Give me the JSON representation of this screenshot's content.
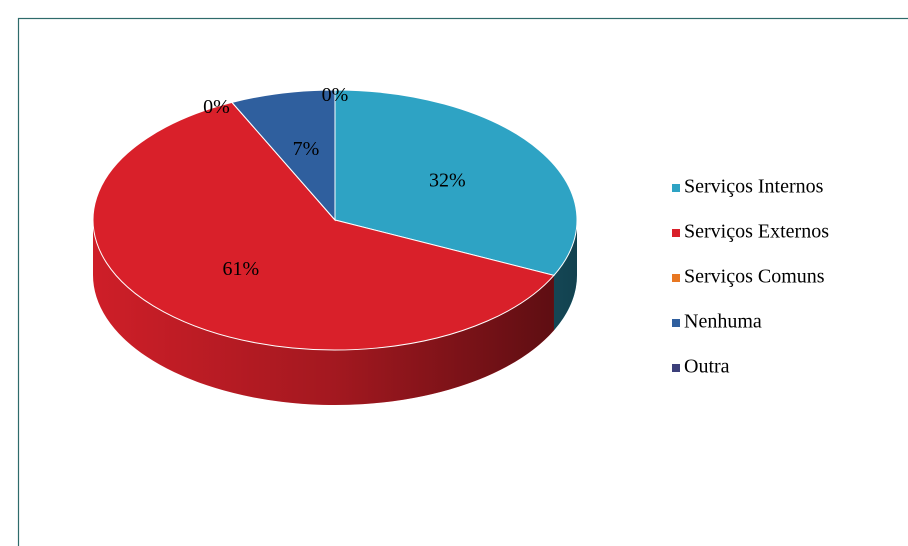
{
  "chart_data": {
    "type": "pie",
    "categories": [
      "Serviços Internos",
      "Serviços Externos",
      "Serviços Comuns",
      "Nenhuma",
      "Outra"
    ],
    "values": [
      32,
      61,
      0,
      7,
      0
    ],
    "value_labels": [
      "32%",
      "61%",
      "0%",
      "7%",
      "0%"
    ],
    "colors": [
      "#2ea3c4",
      "#d9202a",
      "#e87722",
      "#2f5f9e",
      "#3c3f7a"
    ],
    "legend": "right"
  }
}
